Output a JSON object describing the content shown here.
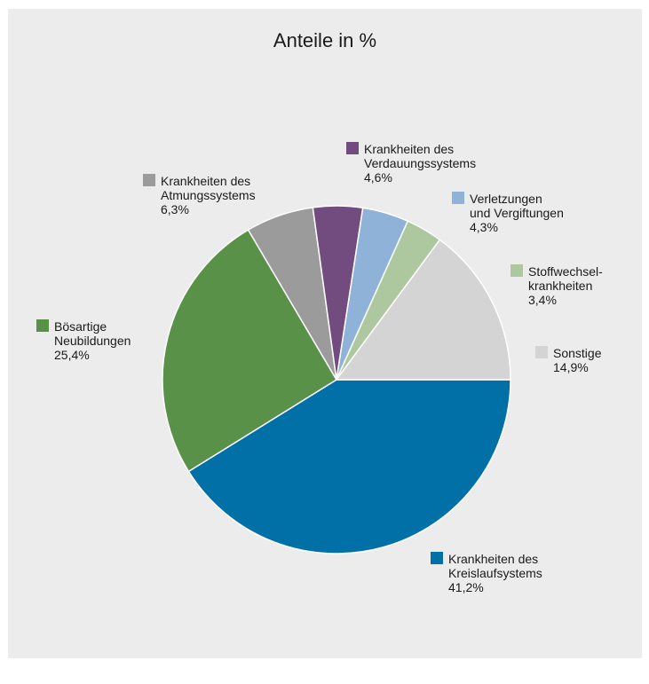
{
  "chart_data": {
    "type": "pie",
    "title": "Anteile in %",
    "slices": [
      {
        "name_lines": [
          "Krankheiten des",
          "Kreislaufsystems"
        ],
        "value": 41.2,
        "value_label": "41,2%",
        "color": "#0070a6"
      },
      {
        "name_lines": [
          "Bösartige",
          "Neubildungen"
        ],
        "value": 25.4,
        "value_label": "25,4%",
        "color": "#5a9148"
      },
      {
        "name_lines": [
          "Krankheiten des",
          "Atmungssystems"
        ],
        "value": 6.3,
        "value_label": "6,3%",
        "color": "#9b9b9b"
      },
      {
        "name_lines": [
          "Krankheiten des",
          "Verdauungssystems"
        ],
        "value": 4.6,
        "value_label": "4,6%",
        "color": "#734c7f"
      },
      {
        "name_lines": [
          "Verletzungen",
          "und Vergiftungen"
        ],
        "value": 4.3,
        "value_label": "4,3%",
        "color": "#8fb3d8"
      },
      {
        "name_lines": [
          "Stoffwechsel-",
          "krankheiten"
        ],
        "value": 3.4,
        "value_label": "3,4%",
        "color": "#adc89f"
      },
      {
        "name_lines": [
          "Sonstige"
        ],
        "value": 14.9,
        "value_label": "14,9%",
        "color": "#d4d4d4"
      }
    ]
  }
}
